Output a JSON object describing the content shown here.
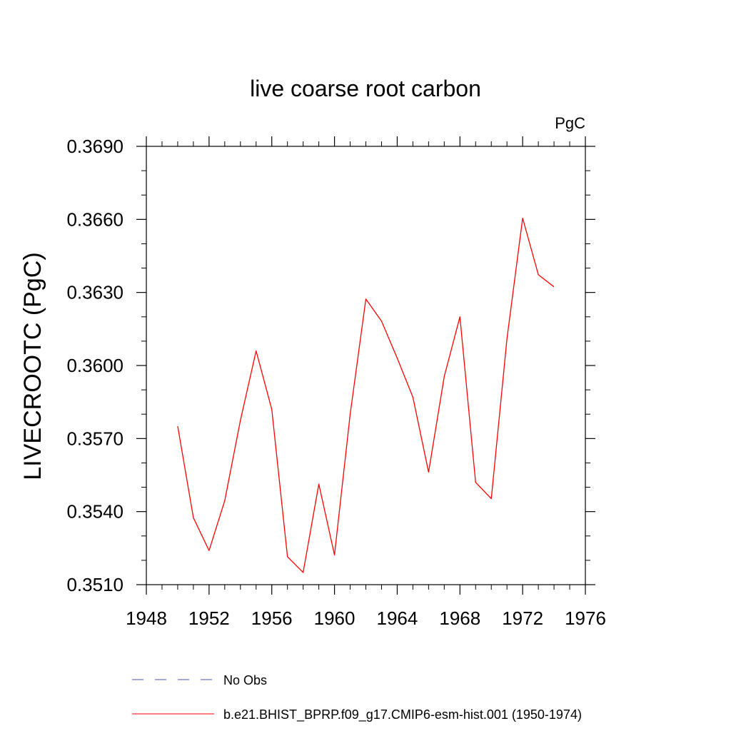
{
  "chart_data": {
    "type": "line",
    "title": "live coarse root carbon",
    "units_label": "PgC",
    "ylabel": "LIVECROOTC  (PgC)",
    "xlabel": "",
    "xlim": [
      1948,
      1976
    ],
    "ylim": [
      0.351,
      0.369
    ],
    "x_ticks": [
      1948,
      1952,
      1956,
      1960,
      1964,
      1968,
      1972,
      1976
    ],
    "x_tick_labels": [
      "1948",
      "1952",
      "1956",
      "1960",
      "1964",
      "1968",
      "1972",
      "1976"
    ],
    "y_ticks": [
      0.351,
      0.354,
      0.357,
      0.36,
      0.363,
      0.366,
      0.369
    ],
    "y_tick_labels": [
      "0.3510",
      "0.3540",
      "0.3570",
      "0.3600",
      "0.3630",
      "0.3660",
      "0.3690"
    ],
    "grid": false,
    "legend_position": "bottom",
    "series": [
      {
        "name": "b.e21.BHIST_BPRP.f09_g17.CMIP6-esm-hist.001 (1950-1974)",
        "color": "#ff0000",
        "style": "solid",
        "x": [
          1950,
          1951,
          1952,
          1953,
          1954,
          1955,
          1956,
          1957,
          1958,
          1959,
          1960,
          1961,
          1962,
          1963,
          1964,
          1965,
          1966,
          1967,
          1968,
          1969,
          1970,
          1971,
          1972,
          1973,
          1974
        ],
        "y": [
          0.35751,
          0.35375,
          0.3524,
          0.35445,
          0.35775,
          0.3606,
          0.3582,
          0.35215,
          0.3515,
          0.35513,
          0.35222,
          0.358,
          0.36273,
          0.36182,
          0.3603,
          0.3587,
          0.35562,
          0.35955,
          0.362,
          0.3552,
          0.35453,
          0.3611,
          0.36605,
          0.36373,
          0.36323
        ]
      }
    ],
    "legend_entries": [
      {
        "label": "No Obs",
        "color": "#5050c8",
        "style": "dashed"
      },
      {
        "label": "b.e21.BHIST_BPRP.f09_g17.CMIP6-esm-hist.001 (1950-1974)",
        "color": "#ff0000",
        "style": "solid"
      }
    ]
  }
}
